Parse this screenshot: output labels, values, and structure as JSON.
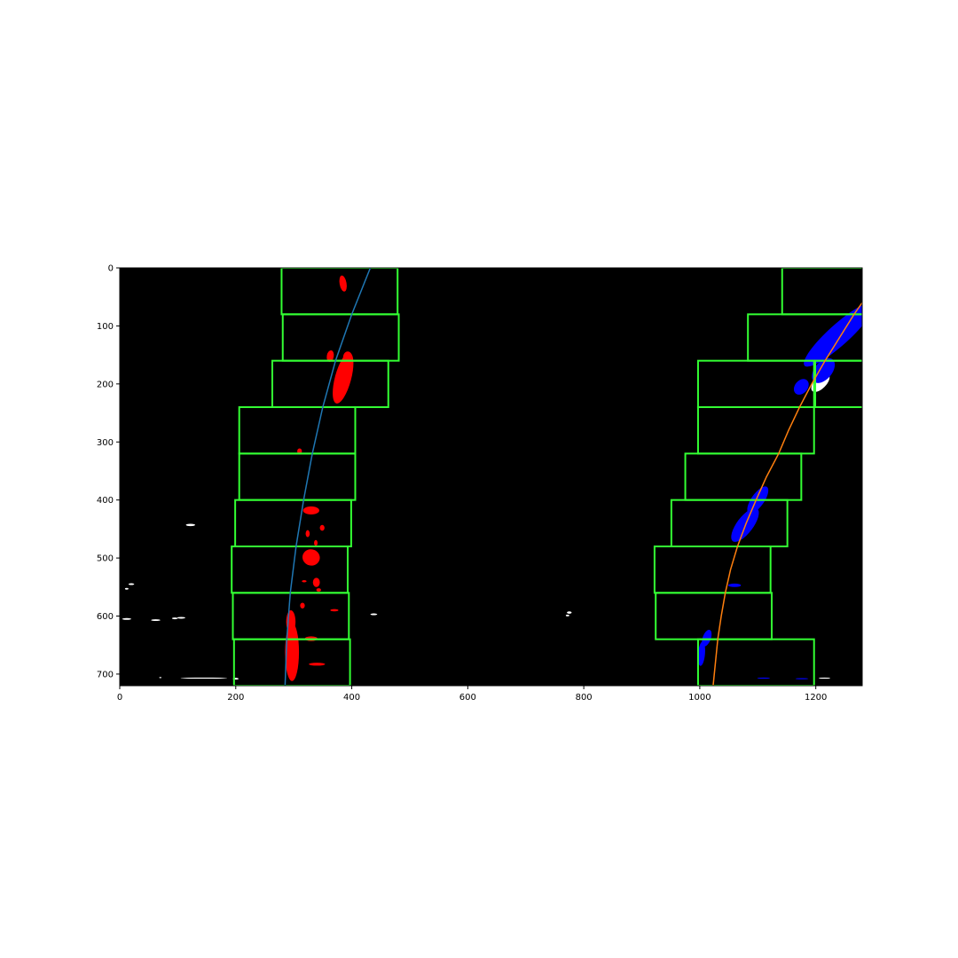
{
  "chart_data": {
    "type": "scatter",
    "title": "",
    "xlabel": "",
    "ylabel": "",
    "xlim": [
      0,
      1280
    ],
    "ylim": [
      720,
      0
    ],
    "y_inverted": true,
    "grid": false,
    "background": "#000000",
    "x_ticks": [
      0,
      200,
      400,
      600,
      800,
      1000,
      1200
    ],
    "y_ticks": [
      0,
      100,
      200,
      300,
      400,
      500,
      600,
      700
    ],
    "colors": {
      "window": "#33ff33",
      "left_pixels": "#ff0000",
      "right_pixels": "#0000ff",
      "other_pixels": "#ffffff",
      "left_fit": "#1f77b4",
      "right_fit": "#ff7f0e"
    },
    "windows": {
      "left": [
        {
          "x0": 279,
          "x1": 479,
          "y0": 0,
          "y1": 80
        },
        {
          "x0": 281,
          "x1": 481,
          "y0": 80,
          "y1": 160
        },
        {
          "x0": 263,
          "x1": 463,
          "y0": 160,
          "y1": 240
        },
        {
          "x0": 206,
          "x1": 406,
          "y0": 240,
          "y1": 320
        },
        {
          "x0": 206,
          "x1": 406,
          "y0": 320,
          "y1": 400
        },
        {
          "x0": 199,
          "x1": 399,
          "y0": 400,
          "y1": 480
        },
        {
          "x0": 193,
          "x1": 393,
          "y0": 480,
          "y1": 560
        },
        {
          "x0": 195,
          "x1": 395,
          "y0": 560,
          "y1": 640
        },
        {
          "x0": 197,
          "x1": 397,
          "y0": 640,
          "y1": 720
        }
      ],
      "right": [
        {
          "x0": 1142,
          "x1": 1342,
          "y0": 0,
          "y1": 80
        },
        {
          "x0": 1083,
          "x1": 1283,
          "y0": 80,
          "y1": 160
        },
        {
          "x0": 1199,
          "x1": 1399,
          "y0": 160,
          "y1": 240
        },
        {
          "x0": 997,
          "x1": 1197,
          "y0": 160,
          "y1": 240
        },
        {
          "x0": 997,
          "x1": 1197,
          "y0": 240,
          "y1": 320
        },
        {
          "x0": 975,
          "x1": 1175,
          "y0": 320,
          "y1": 400
        },
        {
          "x0": 951,
          "x1": 1151,
          "y0": 400,
          "y1": 480
        },
        {
          "x0": 922,
          "x1": 1122,
          "y0": 480,
          "y1": 560
        },
        {
          "x0": 924,
          "x1": 1124,
          "y0": 560,
          "y1": 640
        },
        {
          "x0": 997,
          "x1": 1197,
          "y0": 640,
          "y1": 720
        }
      ]
    },
    "left_fit": {
      "y": [
        0,
        80,
        160,
        240,
        320,
        400,
        480,
        560,
        640,
        720
      ],
      "x": [
        432,
        400,
        372,
        350,
        332,
        317,
        304,
        294,
        288,
        285
      ]
    },
    "right_fit": {
      "y": [
        60,
        80,
        120,
        160,
        200,
        240,
        280,
        320,
        360,
        400,
        440,
        480,
        520,
        560,
        600,
        640,
        680,
        720
      ],
      "x": [
        1280,
        1266,
        1241,
        1216,
        1193,
        1172,
        1153,
        1136,
        1115,
        1097,
        1080,
        1065,
        1053,
        1044,
        1037,
        1031,
        1027,
        1023
      ]
    },
    "left_blobs": [
      {
        "x": 385,
        "y": 27,
        "w": 12,
        "h": 28,
        "rot": -10
      },
      {
        "x": 363,
        "y": 152,
        "w": 12,
        "h": 20,
        "rot": 10
      },
      {
        "x": 385,
        "y": 190,
        "w": 28,
        "h": 90,
        "rot": 15
      },
      {
        "x": 393,
        "y": 155,
        "w": 16,
        "h": 22,
        "rot": 0
      },
      {
        "x": 310,
        "y": 316,
        "w": 8,
        "h": 10,
        "rot": 0
      },
      {
        "x": 330,
        "y": 418,
        "w": 28,
        "h": 14,
        "rot": 0
      },
      {
        "x": 349,
        "y": 448,
        "w": 8,
        "h": 10,
        "rot": 0
      },
      {
        "x": 324,
        "y": 458,
        "w": 7,
        "h": 12,
        "rot": 0
      },
      {
        "x": 338,
        "y": 474,
        "w": 6,
        "h": 10,
        "rot": 0
      },
      {
        "x": 330,
        "y": 499,
        "w": 30,
        "h": 28,
        "rot": 15
      },
      {
        "x": 318,
        "y": 540,
        "w": 8,
        "h": 4,
        "rot": 0
      },
      {
        "x": 339,
        "y": 542,
        "w": 12,
        "h": 16,
        "rot": 0
      },
      {
        "x": 343,
        "y": 555,
        "w": 8,
        "h": 6,
        "rot": 0
      },
      {
        "x": 315,
        "y": 582,
        "w": 8,
        "h": 10,
        "rot": 0
      },
      {
        "x": 370,
        "y": 590,
        "w": 14,
        "h": 4,
        "rot": 0
      },
      {
        "x": 295,
        "y": 610,
        "w": 16,
        "h": 40,
        "rot": 0
      },
      {
        "x": 297,
        "y": 662,
        "w": 24,
        "h": 100,
        "rot": 0
      },
      {
        "x": 330,
        "y": 639,
        "w": 22,
        "h": 8,
        "rot": 0
      },
      {
        "x": 340,
        "y": 683,
        "w": 28,
        "h": 5,
        "rot": 0
      }
    ],
    "right_blobs": [
      {
        "x": 1240,
        "y": 115,
        "w": 36,
        "h": 160,
        "rot": 48
      },
      {
        "x": 1213,
        "y": 177,
        "w": 30,
        "h": 50,
        "rot": 40
      },
      {
        "x": 1175,
        "y": 205,
        "w": 22,
        "h": 30,
        "rot": 40
      },
      {
        "x": 1100,
        "y": 400,
        "w": 22,
        "h": 55,
        "rot": 35
      },
      {
        "x": 1078,
        "y": 443,
        "w": 28,
        "h": 70,
        "rot": 37
      },
      {
        "x": 1060,
        "y": 547,
        "w": 22,
        "h": 6,
        "rot": 0
      },
      {
        "x": 1012,
        "y": 638,
        "w": 14,
        "h": 30,
        "rot": 20
      },
      {
        "x": 1003,
        "y": 665,
        "w": 12,
        "h": 42,
        "rot": 5
      },
      {
        "x": 1110,
        "y": 707,
        "w": 22,
        "h": 2,
        "rot": 0
      },
      {
        "x": 1176,
        "y": 708,
        "w": 22,
        "h": 2,
        "rot": 0
      }
    ],
    "white_pixels": [
      {
        "x": 1208,
        "y": 198,
        "w": 20,
        "h": 40,
        "rot": 45
      },
      {
        "x": 122,
        "y": 443,
        "w": 16,
        "h": 4,
        "rot": 0
      },
      {
        "x": 20,
        "y": 545,
        "w": 10,
        "h": 3,
        "rot": 0
      },
      {
        "x": 12,
        "y": 553,
        "w": 6,
        "h": 3,
        "rot": 0
      },
      {
        "x": 12,
        "y": 605,
        "w": 16,
        "h": 3,
        "rot": 0
      },
      {
        "x": 62,
        "y": 607,
        "w": 16,
        "h": 3,
        "rot": 0
      },
      {
        "x": 95,
        "y": 604,
        "w": 10,
        "h": 3,
        "rot": 0
      },
      {
        "x": 106,
        "y": 603,
        "w": 14,
        "h": 3,
        "rot": 0
      },
      {
        "x": 438,
        "y": 597,
        "w": 12,
        "h": 3,
        "rot": 0
      },
      {
        "x": 775,
        "y": 594,
        "w": 8,
        "h": 4,
        "rot": 0
      },
      {
        "x": 772,
        "y": 599,
        "w": 6,
        "h": 3,
        "rot": 0
      },
      {
        "x": 145,
        "y": 707,
        "w": 80,
        "h": 2,
        "rot": 0
      },
      {
        "x": 70,
        "y": 706,
        "w": 4,
        "h": 2,
        "rot": 0
      },
      {
        "x": 200,
        "y": 708,
        "w": 10,
        "h": 3,
        "rot": 0
      },
      {
        "x": 1215,
        "y": 707,
        "w": 20,
        "h": 2,
        "rot": 0
      }
    ]
  }
}
